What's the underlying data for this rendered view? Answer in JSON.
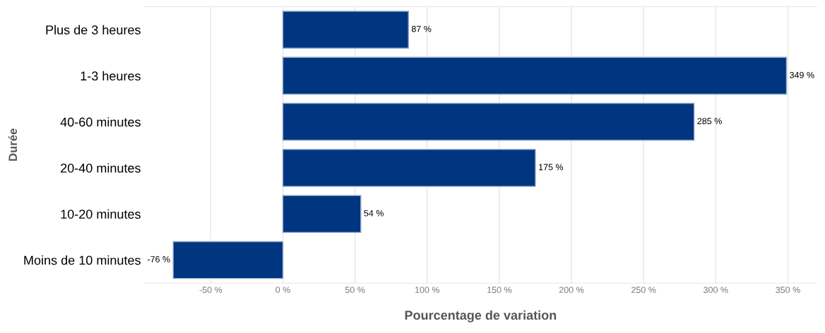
{
  "chart_data": {
    "type": "bar",
    "orientation": "horizontal",
    "xlabel": "Pourcentage de variation",
    "ylabel": "Durée",
    "categories": [
      "Plus de 3 heures",
      "1-3 heures",
      "40-60 minutes",
      "20-40 minutes",
      "10-20 minutes",
      "Moins de 10 minutes"
    ],
    "values": [
      87,
      349,
      285,
      175,
      54,
      -76
    ],
    "value_labels": [
      "87 %",
      "349 %",
      "285 %",
      "175 %",
      "54 %",
      "-76 %"
    ],
    "color": "#003580",
    "xlim": [
      -96,
      370
    ],
    "xticks": [
      {
        "value": -50,
        "label": "-50 %"
      },
      {
        "value": 0,
        "label": "0 %"
      },
      {
        "value": 50,
        "label": "50 %"
      },
      {
        "value": 100,
        "label": "100 %"
      },
      {
        "value": 150,
        "label": "150 %"
      },
      {
        "value": 200,
        "label": "200 %"
      },
      {
        "value": 250,
        "label": "250 %"
      },
      {
        "value": 300,
        "label": "300 %"
      },
      {
        "value": 350,
        "label": "350 %"
      }
    ],
    "grid": "x",
    "legend": false
  }
}
